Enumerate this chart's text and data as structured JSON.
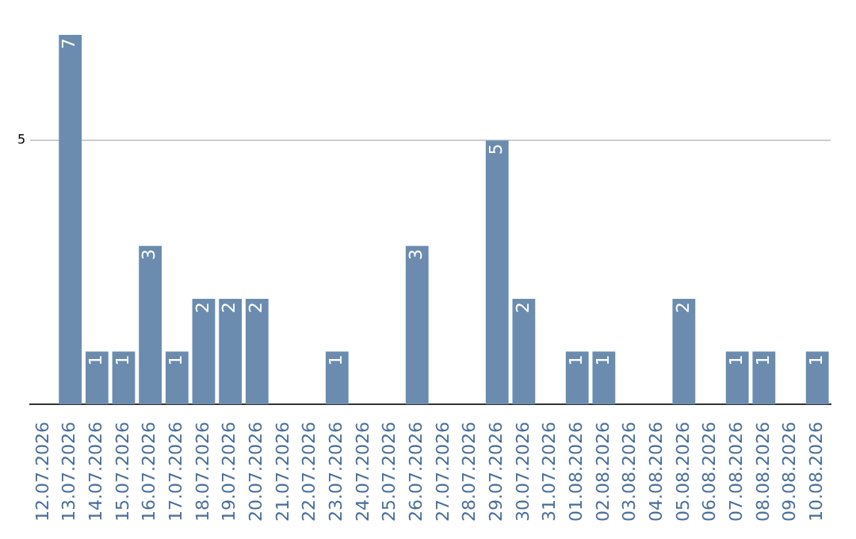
{
  "chart_data": {
    "type": "bar",
    "categories": [
      "12.07.2026",
      "13.07.2026",
      "14.07.2026",
      "15.07.2026",
      "16.07.2026",
      "17.07.2026",
      "18.07.2026",
      "19.07.2026",
      "20.07.2026",
      "21.07.2026",
      "22.07.2026",
      "23.07.2026",
      "24.07.2026",
      "25.07.2026",
      "26.07.2026",
      "27.07.2026",
      "28.07.2026",
      "29.07.2026",
      "30.07.2026",
      "31.07.2026",
      "01.08.2026",
      "02.08.2026",
      "03.08.2026",
      "04.08.2026",
      "05.08.2026",
      "06.08.2026",
      "07.08.2026",
      "08.08.2026",
      "09.08.2026",
      "10.08.2026"
    ],
    "values": [
      0,
      7,
      1,
      1,
      3,
      1,
      2,
      2,
      2,
      0,
      0,
      1,
      0,
      0,
      3,
      0,
      0,
      5,
      2,
      0,
      1,
      1,
      0,
      0,
      2,
      0,
      1,
      1,
      0,
      1
    ],
    "value_labels": [
      null,
      "7",
      "1",
      "1",
      "3",
      "1",
      "2",
      "2",
      "2",
      null,
      null,
      "1",
      null,
      null,
      "3",
      null,
      null,
      "5",
      "2",
      null,
      "1",
      "1",
      null,
      null,
      "2",
      null,
      "1",
      "1",
      null,
      "1"
    ],
    "color": "#6b8cae",
    "ylim": [
      0,
      7
    ],
    "yticks": [
      5
    ],
    "grid": "y",
    "legend": false
  }
}
